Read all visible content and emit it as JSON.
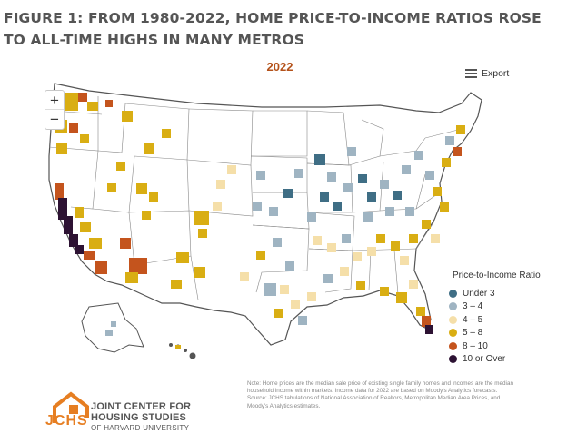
{
  "figure": {
    "title": "FIGURE 1: FROM 1980-2022, HOME PRICE-TO-INCOME RATIOS ROSE TO ALL-TIME HIGHS IN MANY METROS"
  },
  "map": {
    "year": "2022",
    "export_label": "Export",
    "zoom_in_label": "+",
    "zoom_out_label": "−"
  },
  "legend": {
    "title": "Price-to-Income Ratio",
    "items": [
      {
        "label": "Under 3",
        "color": "#3f6e85"
      },
      {
        "label": "3 – 4",
        "color": "#9fb4c2"
      },
      {
        "label": "4 – 5",
        "color": "#f5dfa9"
      },
      {
        "label": "5 – 8",
        "color": "#d9ae13"
      },
      {
        "label": "8 – 10",
        "color": "#c4541d"
      },
      {
        "label": "10 or Over",
        "color": "#2d1233"
      }
    ]
  },
  "note": {
    "text": "Note: Home prices are the median sale price of existing single family homes and incomes are the median household income within markets. Income data for 2022 are based on Moody's Analytics forecasts.",
    "source": "Source: JCHS tabulations of National Association of Realtors, Metropolitan Median Area Prices, and Moody's Analytics estimates."
  },
  "logo": {
    "acronym": "JCHS",
    "line1": "JOINT CENTER FOR",
    "line2": "HOUSING STUDIES",
    "line3": "OF HARVARD UNIVERSITY",
    "color": "#e67e22"
  }
}
